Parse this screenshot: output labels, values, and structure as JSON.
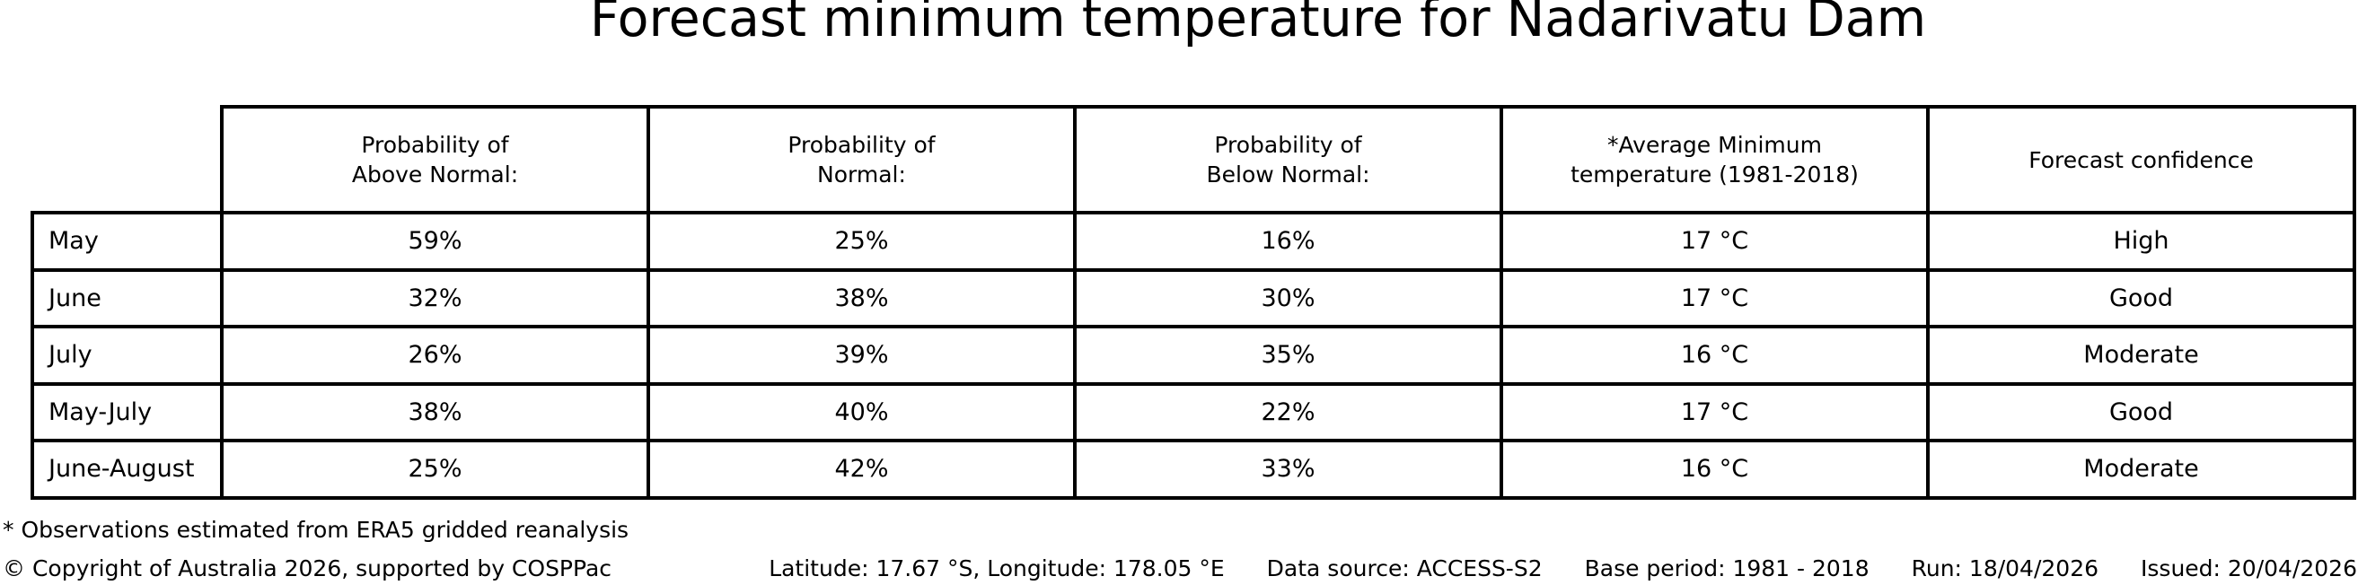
{
  "title": "Forecast minimum temperature for Nadarivatu Dam",
  "colors": {
    "text": "#000000",
    "background": "#ffffff",
    "table_border": "#000000"
  },
  "chart_data": {
    "type": "table",
    "title": "Forecast minimum temperature for Nadarivatu Dam",
    "columns": [
      "Probability of\nAbove Normal:",
      "Probability of\nNormal:",
      "Probability of\nBelow Normal:",
      "*Average Minimum\ntemperature (1981-2018)",
      "Forecast confidence"
    ],
    "row_labels": [
      "May",
      "June",
      "July",
      "May-July",
      "June-August"
    ],
    "rows": [
      [
        "59%",
        "25%",
        "16%",
        "17 °C",
        "High"
      ],
      [
        "32%",
        "38%",
        "30%",
        "17 °C",
        "Good"
      ],
      [
        "26%",
        "39%",
        "35%",
        "16 °C",
        "Moderate"
      ],
      [
        "38%",
        "40%",
        "22%",
        "17 °C",
        "Good"
      ],
      [
        "25%",
        "42%",
        "33%",
        "16 °C",
        "Moderate"
      ]
    ]
  },
  "footnote": "* Observations estimated from ERA5 gridded reanalysis",
  "footer": {
    "copyright": "© Copyright of Australia 2026, supported by COSPPac",
    "location": "Latitude: 17.67 °S, Longitude: 178.05 °E",
    "data_source": "Data source: ACCESS-S2",
    "base_period": "Base period: 1981 - 2018",
    "run": "Run: 18/04/2026",
    "issued": "Issued: 20/04/2026"
  }
}
